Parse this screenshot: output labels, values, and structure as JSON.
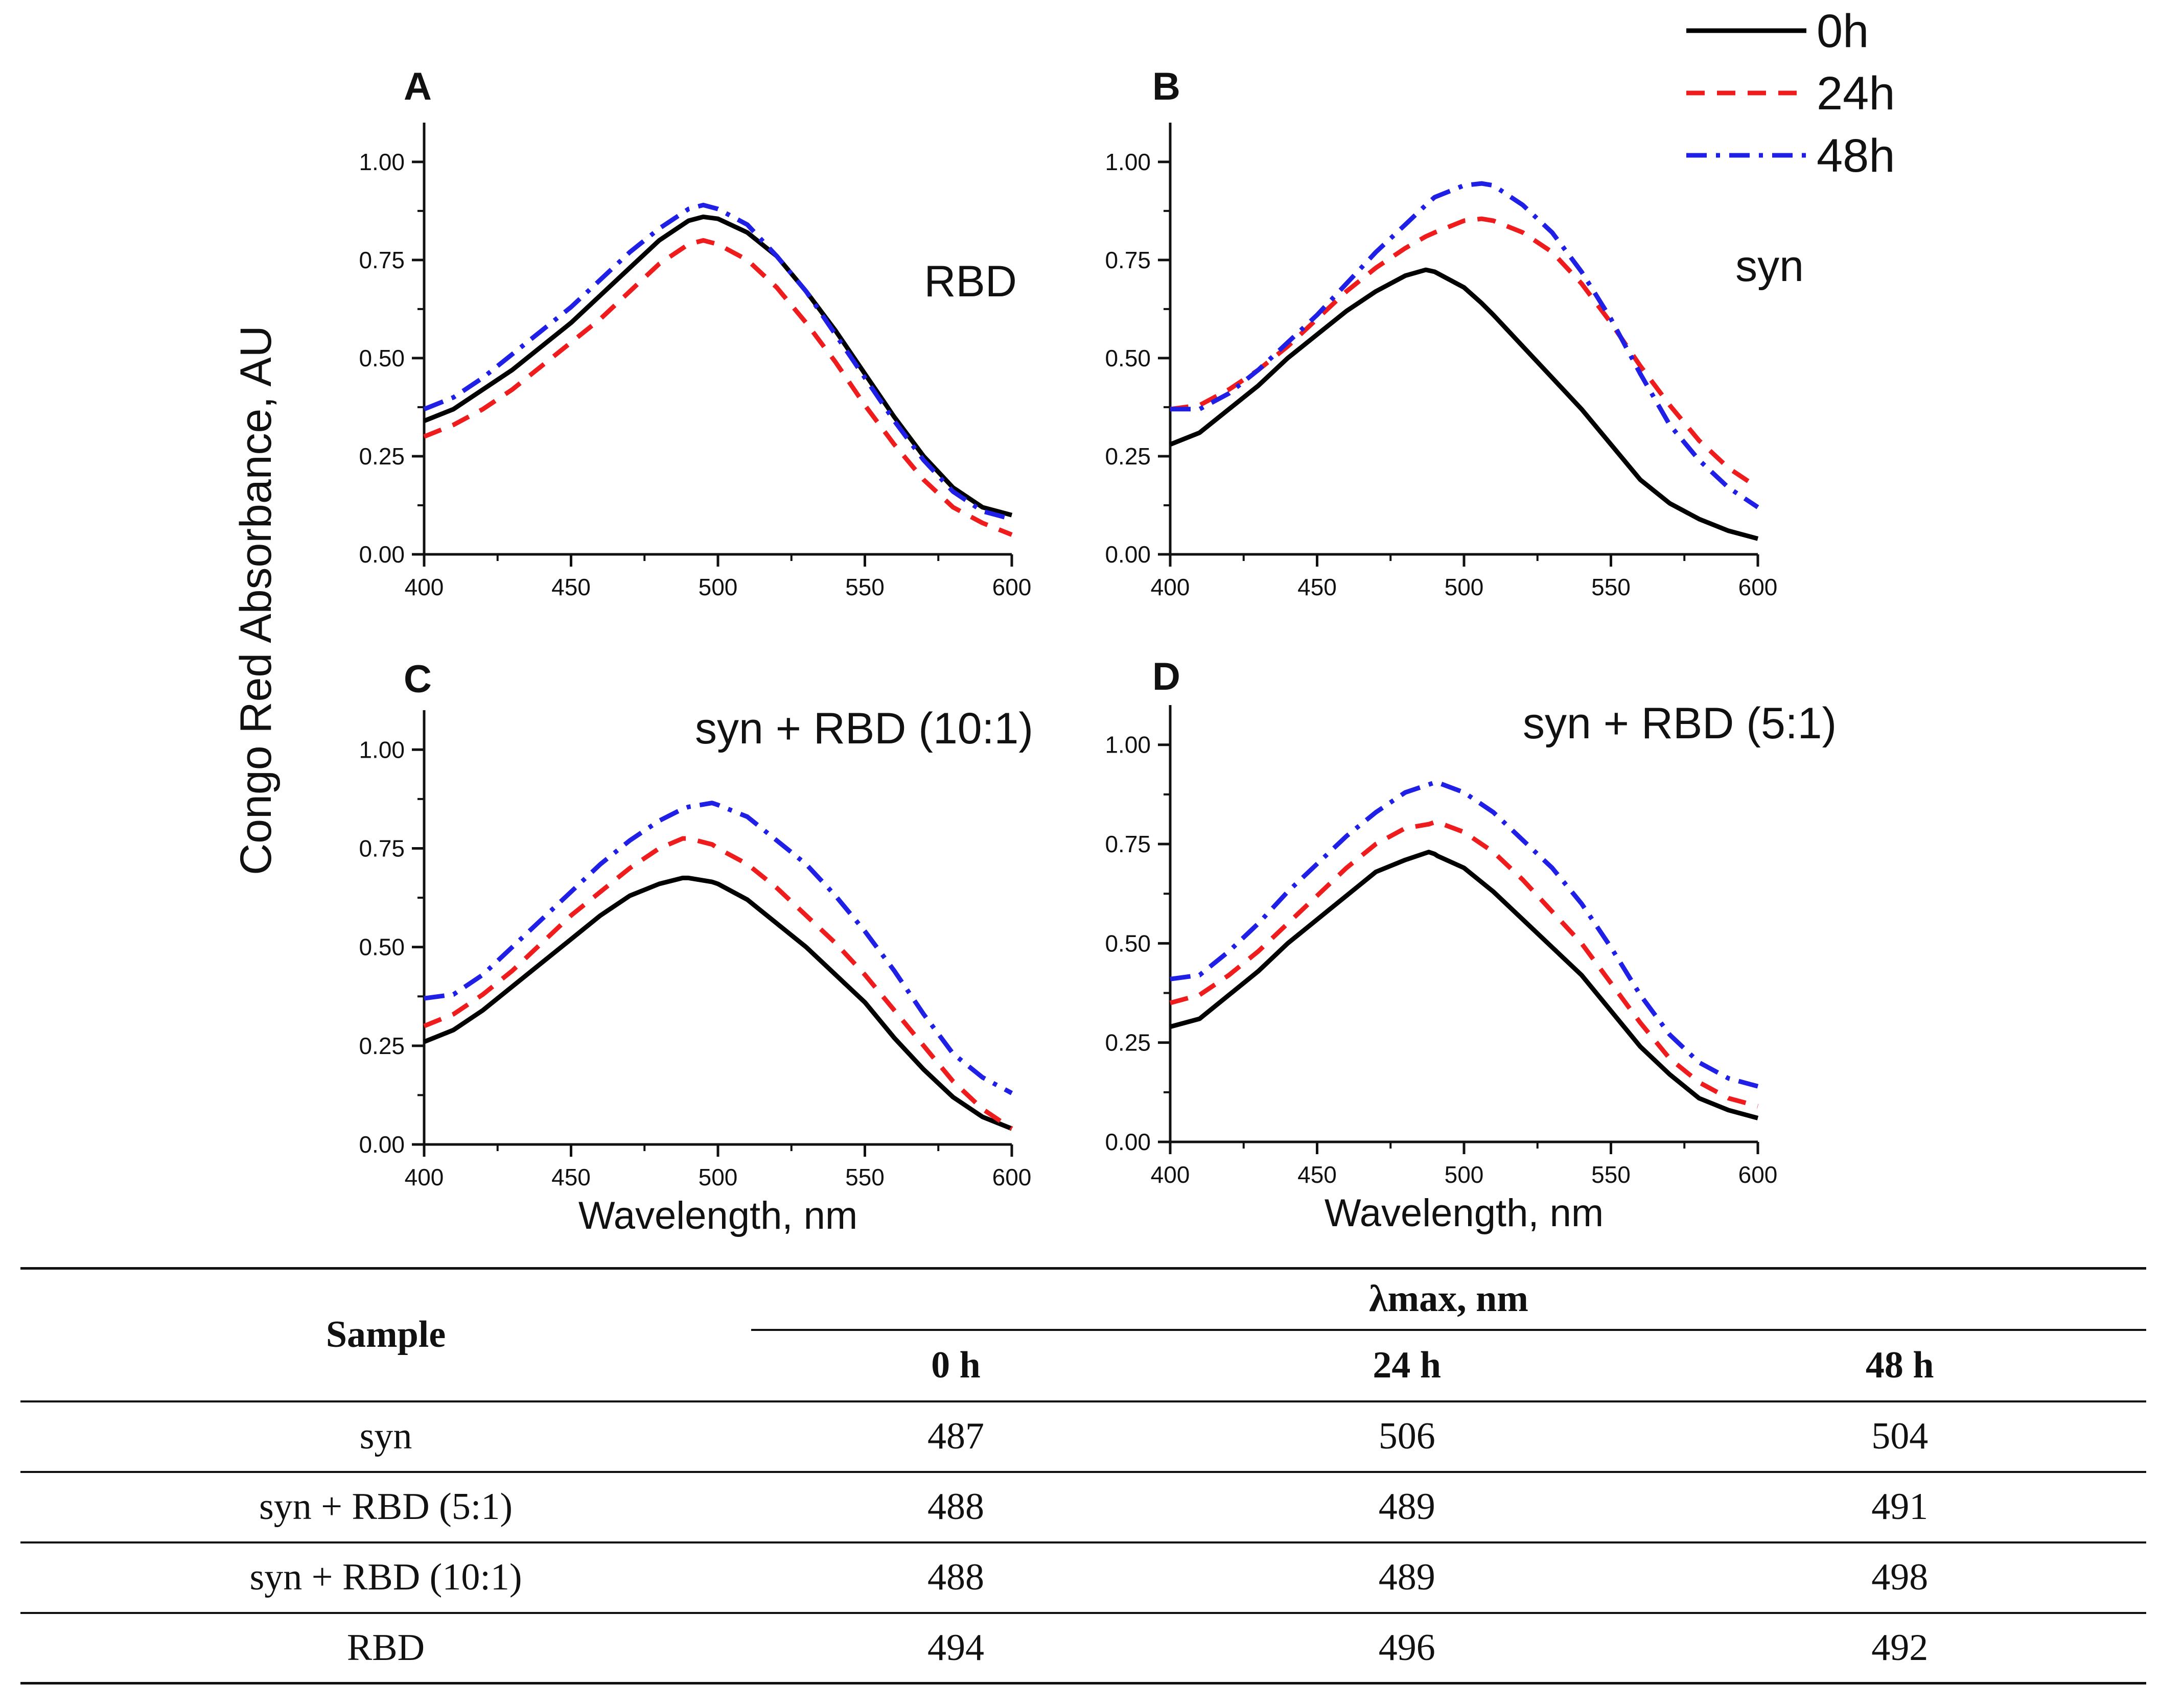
{
  "chart_data": [
    {
      "panel": "A",
      "type": "line",
      "title": "RBD",
      "xlabel": "",
      "ylabel": "Congo Red Absorbance, AU",
      "xlim": [
        400,
        600
      ],
      "ylim": [
        0,
        1.1
      ],
      "xticks": [
        "400",
        "450",
        "500",
        "550",
        "600"
      ],
      "yticks": [
        "0.00",
        "0.25",
        "0.50",
        "0.75",
        "1.00"
      ],
      "x": [
        400,
        410,
        420,
        430,
        440,
        450,
        460,
        470,
        480,
        490,
        495,
        500,
        510,
        520,
        530,
        540,
        550,
        560,
        570,
        580,
        590,
        600
      ],
      "series": [
        {
          "name": "0h",
          "values": [
            0.34,
            0.37,
            0.42,
            0.47,
            0.53,
            0.59,
            0.66,
            0.73,
            0.8,
            0.85,
            0.86,
            0.855,
            0.82,
            0.76,
            0.67,
            0.57,
            0.46,
            0.35,
            0.25,
            0.17,
            0.12,
            0.1
          ]
        },
        {
          "name": "24h",
          "values": [
            0.3,
            0.33,
            0.37,
            0.42,
            0.48,
            0.54,
            0.6,
            0.67,
            0.74,
            0.79,
            0.8,
            0.79,
            0.75,
            0.68,
            0.59,
            0.49,
            0.38,
            0.28,
            0.19,
            0.12,
            0.08,
            0.05
          ]
        },
        {
          "name": "48h",
          "values": [
            0.37,
            0.4,
            0.45,
            0.51,
            0.57,
            0.63,
            0.7,
            0.77,
            0.83,
            0.88,
            0.89,
            0.88,
            0.84,
            0.76,
            0.67,
            0.56,
            0.45,
            0.34,
            0.24,
            0.16,
            0.11,
            0.09
          ]
        }
      ]
    },
    {
      "panel": "B",
      "type": "line",
      "title": "syn",
      "xlabel": "",
      "ylabel": "",
      "xlim": [
        400,
        600
      ],
      "ylim": [
        0,
        1.1
      ],
      "xticks": [
        "400",
        "450",
        "500",
        "550",
        "600"
      ],
      "yticks": [
        "0.00",
        "0.25",
        "0.50",
        "0.75",
        "1.00"
      ],
      "x": [
        400,
        410,
        420,
        430,
        440,
        450,
        460,
        470,
        480,
        487,
        490,
        500,
        506,
        510,
        520,
        530,
        540,
        550,
        560,
        570,
        580,
        590,
        600
      ],
      "series": [
        {
          "name": "0h",
          "values": [
            0.28,
            0.31,
            0.37,
            0.43,
            0.5,
            0.56,
            0.62,
            0.67,
            0.71,
            0.725,
            0.72,
            0.68,
            0.64,
            0.61,
            0.53,
            0.45,
            0.37,
            0.28,
            0.19,
            0.13,
            0.09,
            0.06,
            0.04
          ]
        },
        {
          "name": "24h",
          "values": [
            0.37,
            0.38,
            0.42,
            0.47,
            0.53,
            0.6,
            0.67,
            0.73,
            0.78,
            0.81,
            0.82,
            0.85,
            0.855,
            0.85,
            0.82,
            0.77,
            0.69,
            0.59,
            0.48,
            0.38,
            0.29,
            0.22,
            0.17
          ]
        },
        {
          "name": "48h",
          "values": [
            0.37,
            0.37,
            0.41,
            0.47,
            0.54,
            0.61,
            0.69,
            0.77,
            0.84,
            0.89,
            0.91,
            0.94,
            0.945,
            0.94,
            0.89,
            0.82,
            0.72,
            0.6,
            0.46,
            0.33,
            0.24,
            0.17,
            0.12
          ]
        }
      ]
    },
    {
      "panel": "C",
      "type": "line",
      "title": "syn + RBD (10:1)",
      "xlabel": "Wavelength, nm",
      "ylabel": "",
      "xlim": [
        400,
        600
      ],
      "ylim": [
        0,
        1.1
      ],
      "xticks": [
        "400",
        "450",
        "500",
        "550",
        "600"
      ],
      "yticks": [
        "0.00",
        "0.25",
        "0.50",
        "0.75",
        "1.00"
      ],
      "x": [
        400,
        410,
        420,
        430,
        440,
        450,
        460,
        470,
        480,
        488,
        490,
        498,
        500,
        510,
        520,
        530,
        540,
        550,
        560,
        570,
        580,
        590,
        600
      ],
      "series": [
        {
          "name": "0h",
          "values": [
            0.26,
            0.29,
            0.34,
            0.4,
            0.46,
            0.52,
            0.58,
            0.63,
            0.66,
            0.675,
            0.675,
            0.665,
            0.66,
            0.62,
            0.56,
            0.5,
            0.43,
            0.36,
            0.27,
            0.19,
            0.12,
            0.07,
            0.04
          ]
        },
        {
          "name": "24h",
          "values": [
            0.3,
            0.33,
            0.38,
            0.44,
            0.51,
            0.58,
            0.64,
            0.7,
            0.75,
            0.775,
            0.775,
            0.76,
            0.75,
            0.71,
            0.65,
            0.58,
            0.51,
            0.43,
            0.34,
            0.25,
            0.16,
            0.09,
            0.04
          ]
        },
        {
          "name": "48h",
          "values": [
            0.37,
            0.38,
            0.43,
            0.5,
            0.57,
            0.64,
            0.71,
            0.77,
            0.82,
            0.85,
            0.855,
            0.865,
            0.86,
            0.83,
            0.77,
            0.71,
            0.63,
            0.54,
            0.44,
            0.33,
            0.23,
            0.17,
            0.13
          ]
        }
      ]
    },
    {
      "panel": "D",
      "type": "line",
      "title": "syn + RBD (5:1)",
      "xlabel": "Wavelength, nm",
      "ylabel": "",
      "xlim": [
        400,
        600
      ],
      "ylim": [
        0,
        1.1
      ],
      "xticks": [
        "400",
        "450",
        "500",
        "550",
        "600"
      ],
      "yticks": [
        "0.00",
        "0.25",
        "0.50",
        "0.75",
        "1.00"
      ],
      "x": [
        400,
        410,
        420,
        430,
        440,
        450,
        460,
        470,
        480,
        488,
        490,
        491,
        500,
        510,
        520,
        530,
        540,
        550,
        560,
        570,
        580,
        590,
        600
      ],
      "series": [
        {
          "name": "0h",
          "values": [
            0.29,
            0.31,
            0.37,
            0.43,
            0.5,
            0.56,
            0.62,
            0.68,
            0.71,
            0.73,
            0.725,
            0.72,
            0.69,
            0.63,
            0.56,
            0.49,
            0.42,
            0.33,
            0.24,
            0.17,
            0.11,
            0.08,
            0.06
          ]
        },
        {
          "name": "24h",
          "values": [
            0.35,
            0.37,
            0.42,
            0.48,
            0.55,
            0.62,
            0.69,
            0.75,
            0.79,
            0.8,
            0.805,
            0.805,
            0.78,
            0.73,
            0.66,
            0.58,
            0.5,
            0.4,
            0.3,
            0.21,
            0.15,
            0.11,
            0.09
          ]
        },
        {
          "name": "48h",
          "values": [
            0.41,
            0.42,
            0.48,
            0.55,
            0.63,
            0.7,
            0.77,
            0.83,
            0.88,
            0.9,
            0.905,
            0.905,
            0.88,
            0.83,
            0.76,
            0.69,
            0.6,
            0.49,
            0.37,
            0.27,
            0.2,
            0.16,
            0.14
          ]
        }
      ]
    }
  ],
  "legend": [
    {
      "label": "0h",
      "color": "#000000",
      "dash": "solid"
    },
    {
      "label": "24h",
      "color": "#ee1c1c",
      "dash": "dashed"
    },
    {
      "label": "48h",
      "color": "#1f1fe6",
      "dash": "dashdot"
    }
  ],
  "shared_ylabel": "Congo Red Absorbance, AU",
  "table": {
    "sample_header": "Sample",
    "group_header": "λmax, nm",
    "columns": [
      "0 h",
      "24 h",
      "48 h"
    ],
    "rows": [
      {
        "sample": "syn",
        "values": [
          "487",
          "506",
          "504"
        ]
      },
      {
        "sample": "syn + RBD (5:1)",
        "values": [
          "488",
          "489",
          "491"
        ]
      },
      {
        "sample": "syn + RBD (10:1)",
        "values": [
          "488",
          "489",
          "498"
        ]
      },
      {
        "sample": "RBD",
        "values": [
          "494",
          "496",
          "492"
        ]
      }
    ]
  }
}
